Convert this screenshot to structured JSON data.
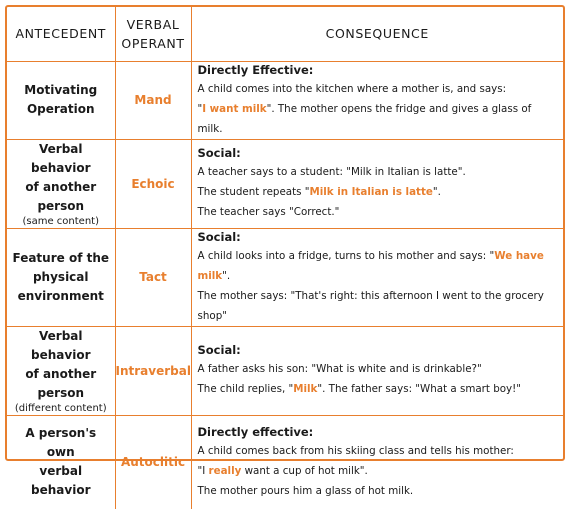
{
  "header": {
    "antecedent": "ANTECEDENT",
    "operant_line1": "VERBAL",
    "operant_line2": "OPERANT",
    "consequence": "CONSEQUENCE"
  },
  "rows": [
    {
      "antecedent": [
        "Motivating",
        "Operation"
      ],
      "antecedent_sub": "",
      "operant": "Mand",
      "heading": "Directly Effective:",
      "lines": [
        [
          {
            "t": "A child comes into the kitchen where a mother is, and says:"
          }
        ],
        [
          {
            "t": "\""
          },
          {
            "t": "I want milk",
            "hl": true
          },
          {
            "t": "\". The mother opens the fridge and gives a glass of milk."
          }
        ]
      ]
    },
    {
      "antecedent": [
        "Verbal behavior",
        "of another",
        "person"
      ],
      "antecedent_sub": "(same content)",
      "operant": "Echoic",
      "heading": "Social:",
      "lines": [
        [
          {
            "t": "A teacher says to a student: \"Milk in Italian is latte\"."
          }
        ],
        [
          {
            "t": "The student repeats \""
          },
          {
            "t": "Milk in Italian is latte",
            "hl": true
          },
          {
            "t": "\"."
          }
        ],
        [
          {
            "t": "The teacher says \"Correct.\""
          }
        ]
      ]
    },
    {
      "antecedent": [
        "Feature of the",
        "physical",
        "environment"
      ],
      "antecedent_sub": "",
      "operant": "Tact",
      "heading": "Social:",
      "lines": [
        [
          {
            "t": "A child looks into a fridge, turns to his mother and says:  \""
          },
          {
            "t": "We have milk",
            "hl": true
          },
          {
            "t": "\"."
          }
        ],
        [
          {
            "t": "The mother says: \"That's right: this afternoon  I went to the grocery shop\""
          }
        ]
      ]
    },
    {
      "antecedent": [
        "Verbal behavior",
        "of another",
        "person"
      ],
      "antecedent_sub": "(different content)",
      "operant": "Intraverbal",
      "heading": "Social:",
      "lines": [
        [
          {
            "t": "A father asks his son: \"What is white and is drinkable?\""
          }
        ],
        [
          {
            "t": "The child replies, \""
          },
          {
            "t": "Milk",
            "hl": true
          },
          {
            "t": "\". The father says: \"What a smart boy!\""
          }
        ]
      ]
    },
    {
      "antecedent": [
        "A person's own",
        "verbal behavior"
      ],
      "antecedent_sub": "",
      "operant": "Autoclitic",
      "heading": "Directly effective:",
      "lines": [
        [
          {
            "t": "A child comes back from his skiing class and tells his mother:"
          }
        ],
        [
          {
            "t": "\"I "
          },
          {
            "t": "really",
            "hl": true
          },
          {
            "t": " want a cup of hot milk\"."
          }
        ],
        [
          {
            "t": "The mother pours him a glass of hot milk."
          }
        ]
      ]
    }
  ],
  "colors": {
    "accent": "#e87f2e",
    "text": "#1a1a1a"
  }
}
